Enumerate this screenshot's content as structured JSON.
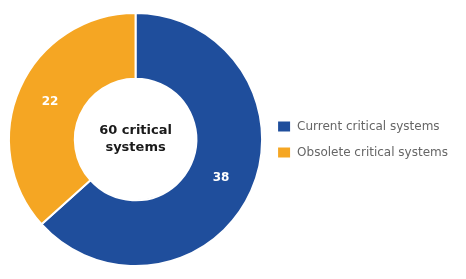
{
  "chart_data": {
    "type": "doughnut",
    "categories": [
      "Current critical systems",
      "Obsolete critical systems"
    ],
    "values": [
      38,
      22
    ],
    "colors": [
      "#1f4e9c",
      "#f5a623"
    ],
    "data_labels": true,
    "annotations": [
      "60 critical",
      "systems"
    ],
    "legend": "right"
  }
}
